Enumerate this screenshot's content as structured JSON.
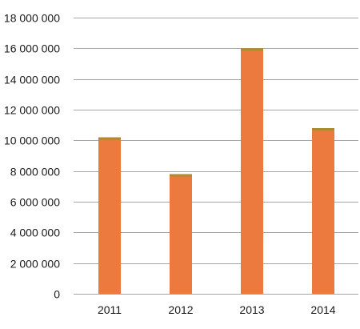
{
  "chart_data": {
    "type": "bar",
    "title": "",
    "xlabel": "",
    "ylabel": "",
    "categories": [
      "2011",
      "2012",
      "2013",
      "2014"
    ],
    "values": [
      10200000,
      7800000,
      16000000,
      10800000
    ],
    "ylim": [
      0,
      18000000
    ],
    "yticks": [
      0,
      2000000,
      4000000,
      6000000,
      8000000,
      10000000,
      12000000,
      14000000,
      16000000,
      18000000
    ],
    "ytick_labels": [
      "0",
      "2 000 000",
      "4 000 000",
      "6 000 000",
      "8 000 000",
      "10 000 000",
      "12 000 000",
      "14 000 000",
      "16 000 000",
      "18 000 000"
    ],
    "grid": true,
    "legend": "none",
    "colors": {
      "bar": "#ec7a3f",
      "bar_top": "#b08a2e",
      "grid": "#a6a6a6"
    }
  }
}
